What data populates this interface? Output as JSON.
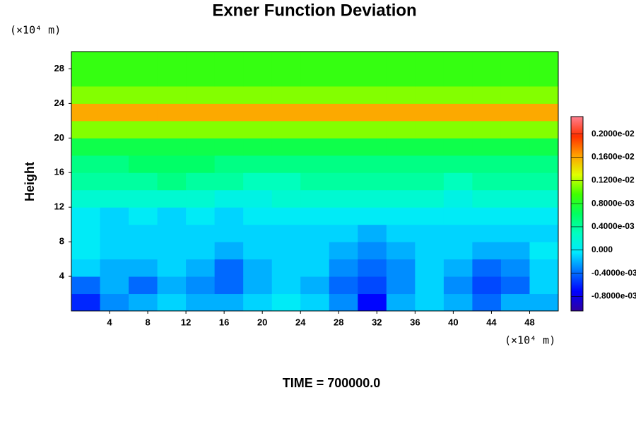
{
  "chart_data": {
    "type": "contour",
    "title": "Exner Function Deviation",
    "ylabel": "Height",
    "y_unit": "(×10⁴ m)",
    "x_unit": "(×10⁴ m)",
    "footer": "TIME = 700000.0",
    "xlim": [
      0,
      51
    ],
    "ylim": [
      0,
      30
    ],
    "xticks": [
      4,
      8,
      12,
      16,
      20,
      24,
      28,
      32,
      36,
      40,
      44,
      48
    ],
    "yticks": [
      4,
      8,
      12,
      16,
      20,
      24,
      28
    ],
    "x": [
      1.5,
      4.5,
      7.5,
      10.5,
      13.5,
      16.5,
      19.5,
      22.5,
      25.5,
      28.5,
      31.5,
      34.5,
      37.5,
      40.5,
      43.5,
      46.5,
      49.5
    ],
    "y": [
      1,
      3,
      5,
      7,
      9,
      11,
      13,
      15,
      17,
      19,
      21,
      23,
      25,
      27,
      29
    ],
    "z": [
      [
        -0.0006,
        -0.0003,
        -0.0002,
        -0.0001,
        -0.0002,
        -0.0002,
        -0.0001,
        0,
        -0.0001,
        -0.0003,
        -0.0007,
        -0.0002,
        -0.0001,
        -0.0002,
        -0.0004,
        -0.0002,
        -0.0002
      ],
      [
        -0.0004,
        -0.0002,
        -0.0004,
        -0.0002,
        -0.0003,
        -0.0004,
        -0.0002,
        -0.0001,
        -0.0002,
        -0.0004,
        -0.0005,
        -0.0003,
        -0.0001,
        -0.0003,
        -0.0005,
        -0.0004,
        -0.0001
      ],
      [
        -0.0001,
        -0.0002,
        -0.0002,
        -0.0001,
        -0.0002,
        -0.0004,
        -0.0002,
        -0.0001,
        -0.0001,
        -0.0003,
        -0.0004,
        -0.0003,
        -0.0001,
        -0.0002,
        -0.0004,
        -0.0003,
        -0.0001
      ],
      [
        0,
        -0.0001,
        -0.0001,
        -0.0001,
        -0.0001,
        -0.0002,
        -0.0001,
        -0.0001,
        -0.0001,
        -0.0002,
        -0.0003,
        -0.0002,
        -0.0001,
        -0.0001,
        -0.0002,
        -0.0002,
        0
      ],
      [
        0,
        -0.0001,
        -0.0001,
        -0.0001,
        -0.0001,
        -0.0001,
        -0.0001,
        -0.0001,
        -0.0001,
        -0.0001,
        -0.0002,
        -0.0001,
        -0.0001,
        -0.0001,
        -0.0001,
        -0.0001,
        -0.0001
      ],
      [
        0,
        -0.0001,
        0,
        -0.0001,
        0,
        -0.0001,
        0,
        0,
        0,
        0,
        0,
        0,
        0,
        0,
        0,
        0,
        0
      ],
      [
        0.0002,
        0.0002,
        0.0002,
        0.0002,
        0.0002,
        0.0001,
        0.0001,
        0.0002,
        0.0002,
        0.0002,
        0.0002,
        0.0002,
        0.0002,
        0.0001,
        0.0002,
        0.0002,
        0.0002
      ],
      [
        0.0004,
        0.0004,
        0.0004,
        0.0005,
        0.0004,
        0.0004,
        0.0003,
        0.0003,
        0.0004,
        0.0004,
        0.0004,
        0.0004,
        0.0004,
        0.0003,
        0.0004,
        0.0004,
        0.0004
      ],
      [
        0.0005,
        0.0005,
        0.0006,
        0.0006,
        0.0006,
        0.0005,
        0.0005,
        0.0005,
        0.0005,
        0.0005,
        0.0005,
        0.0005,
        0.0005,
        0.0005,
        0.0005,
        0.0005,
        0.0005
      ],
      [
        0.0007,
        0.0007,
        0.0007,
        0.0007,
        0.0007,
        0.0007,
        0.0007,
        0.0007,
        0.0007,
        0.0007,
        0.0007,
        0.0007,
        0.0007,
        0.0007,
        0.0007,
        0.0007,
        0.0007
      ],
      [
        0.0011,
        0.0011,
        0.0011,
        0.0011,
        0.0011,
        0.0011,
        0.0011,
        0.0011,
        0.0011,
        0.0011,
        0.0011,
        0.0011,
        0.0011,
        0.0011,
        0.0011,
        0.0011,
        0.0011
      ],
      [
        0.0016,
        0.0016,
        0.0016,
        0.0016,
        0.0016,
        0.0016,
        0.0016,
        0.0016,
        0.0016,
        0.0016,
        0.0016,
        0.0016,
        0.0016,
        0.0016,
        0.0016,
        0.0016,
        0.0016
      ],
      [
        0.0011,
        0.0011,
        0.0011,
        0.0011,
        0.0011,
        0.0011,
        0.0011,
        0.0011,
        0.0011,
        0.0011,
        0.0011,
        0.0011,
        0.0011,
        0.0011,
        0.0011,
        0.0011,
        0.0011
      ],
      [
        0.0009,
        0.0009,
        0.0009,
        0.0009,
        0.0009,
        0.0009,
        0.0009,
        0.0009,
        0.0009,
        0.0009,
        0.0009,
        0.0009,
        0.0009,
        0.0009,
        0.0009,
        0.0009,
        0.0009
      ],
      [
        0.0009,
        0.0009,
        0.0009,
        0.0009,
        0.0009,
        0.0009,
        0.0009,
        0.0009,
        0.0009,
        0.0009,
        0.0009,
        0.0009,
        0.0009,
        0.0009,
        0.0009,
        0.0009,
        0.0009
      ]
    ],
    "clim": [
      -0.00105,
      0.0023
    ],
    "cticks": [
      {
        "value": 0.002,
        "label": "0.2000e-02"
      },
      {
        "value": 0.0016,
        "label": "0.1600e-02"
      },
      {
        "value": 0.0012,
        "label": "0.1200e-02"
      },
      {
        "value": 0.0008,
        "label": "0.8000e-03"
      },
      {
        "value": 0.0004,
        "label": "0.4000e-03"
      },
      {
        "value": 0,
        "label": "0.000"
      },
      {
        "value": -0.0004,
        "label": "-0.4000e-03"
      },
      {
        "value": -0.0008,
        "label": "-0.8000e-03"
      }
    ],
    "colormap": [
      "#3000a0",
      "#0000ff",
      "#0070ff",
      "#00e8ff",
      "#00ffc0",
      "#00ff60",
      "#40ff00",
      "#e0ff00",
      "#ffa000",
      "#ff3000",
      "#ff8090"
    ]
  }
}
